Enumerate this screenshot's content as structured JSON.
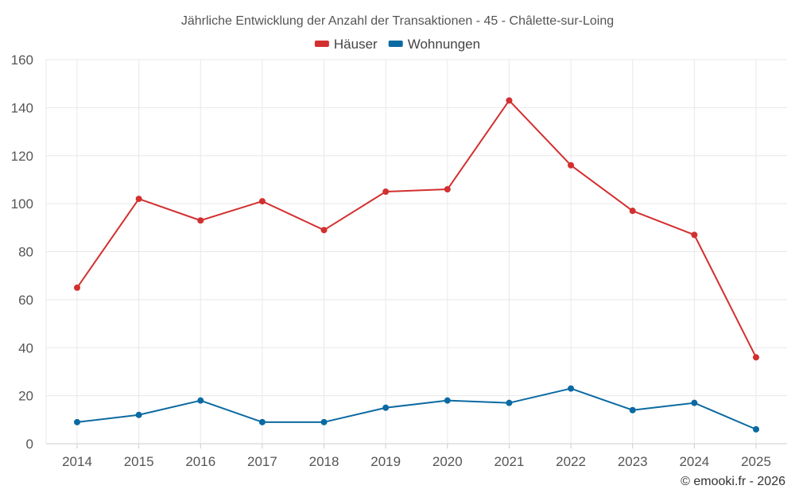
{
  "chart_data": {
    "type": "line",
    "title": "Jährliche Entwicklung der Anzahl der Transaktionen - 45 - Châlette-sur-Loing",
    "categories": [
      "2014",
      "2015",
      "2016",
      "2017",
      "2018",
      "2019",
      "2020",
      "2021",
      "2022",
      "2023",
      "2024",
      "2025"
    ],
    "series": [
      {
        "name": "Häuser",
        "color": "#d32f2f",
        "values": [
          65,
          102,
          93,
          101,
          89,
          105,
          106,
          143,
          116,
          97,
          87,
          36
        ]
      },
      {
        "name": "Wohnungen",
        "color": "#0b6aa2",
        "values": [
          9,
          12,
          18,
          9,
          9,
          15,
          18,
          17,
          23,
          14,
          17,
          6
        ]
      }
    ],
    "ylim": [
      0,
      160
    ],
    "yticks": [
      "0",
      "20",
      "40",
      "60",
      "80",
      "100",
      "120",
      "140",
      "160"
    ],
    "grid": true,
    "legend": "top-center",
    "xlabel": "",
    "ylabel": ""
  },
  "credit": "© emooki.fr - 2026"
}
